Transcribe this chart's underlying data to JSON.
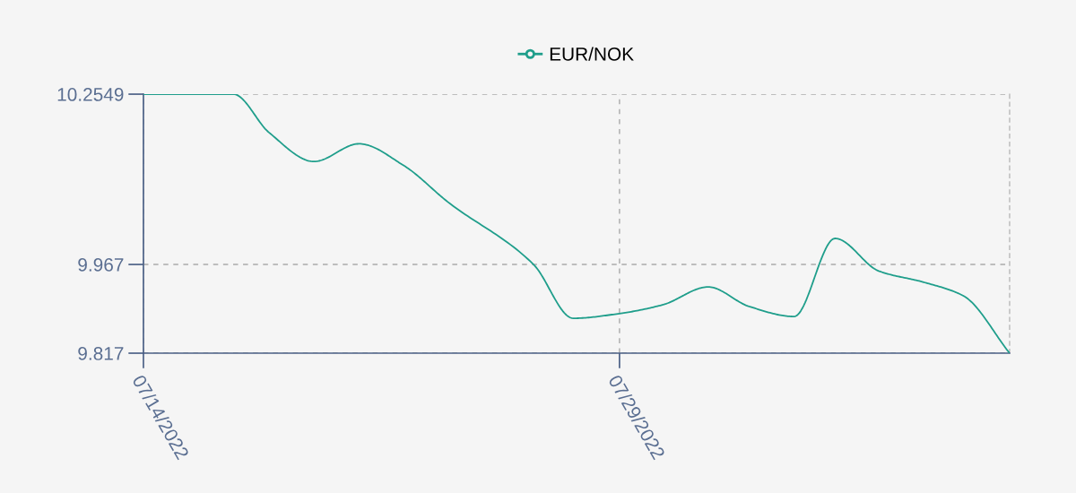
{
  "chart_data": {
    "type": "line",
    "x": [
      "2022-07-14T00:00",
      "2022-07-16T20:00",
      "2022-07-17T23:00",
      "2022-07-19T09:00",
      "2022-07-20T19:00",
      "2022-07-22T05:00",
      "2022-07-23T14:00",
      "2022-07-26T07:00",
      "2022-07-27T13:00",
      "2022-07-29T00:00",
      "2022-07-30T09:00",
      "2022-07-31T19:00",
      "2022-08-02T02:00",
      "2022-08-03T12:00",
      "2022-08-04T19:00",
      "2022-08-06T04:00",
      "2022-08-07T14:00",
      "2022-08-08T20:00",
      "2022-08-10T07:00"
    ],
    "series": [
      {
        "name": "EUR/NOK",
        "color": "#1f9e8b",
        "values": [
          10.2549,
          10.2549,
          10.19,
          10.141,
          10.171,
          10.134,
          10.073,
          9.967,
          9.876,
          9.884,
          9.899,
          9.929,
          9.896,
          9.879,
          10.011,
          9.956,
          9.937,
          9.914,
          9.817
        ]
      }
    ],
    "xlim": [
      "2022-07-14T00:00",
      "2022-08-10T07:00"
    ],
    "xticks": [
      {
        "value": "2022-07-14",
        "label": "07/14/2022"
      },
      {
        "value": "2022-07-29",
        "label": "07/29/2022"
      }
    ],
    "ylim": [
      9.817,
      10.2549
    ],
    "yticks": [
      9.817,
      9.967,
      10.2549
    ],
    "grid": true,
    "legend": "top",
    "marker": "none",
    "line_style": "solid"
  }
}
